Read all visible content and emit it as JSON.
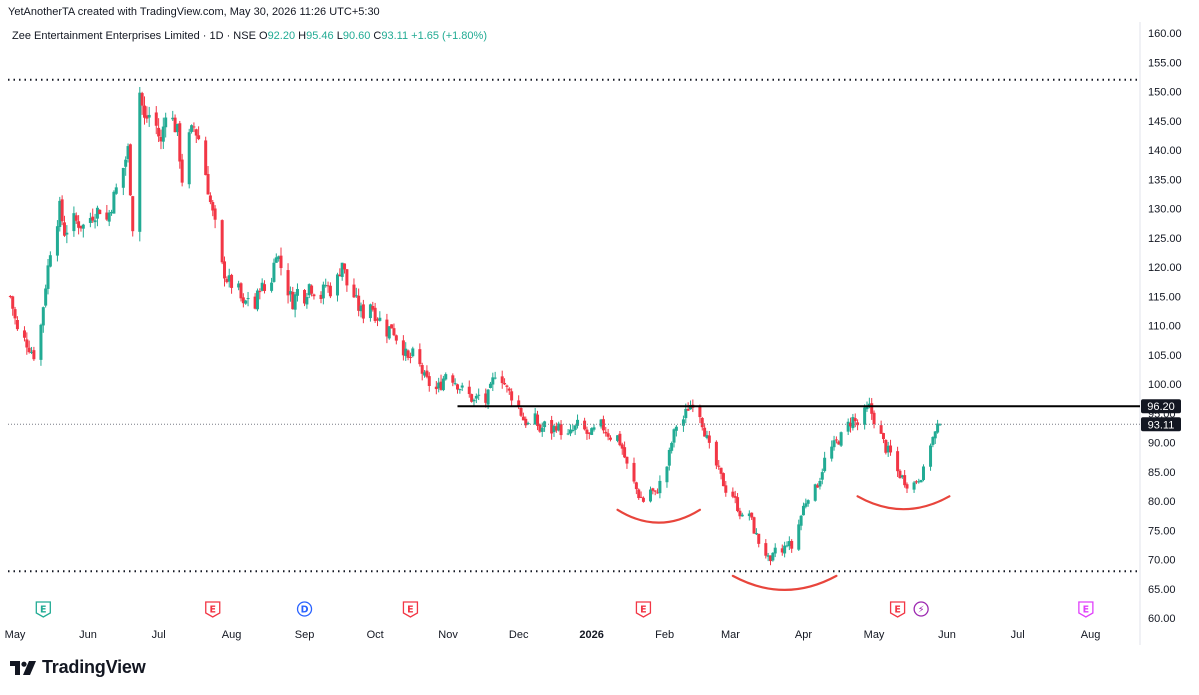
{
  "header": {
    "credit": "YetAnotherTA created with TradingView.com, May 30, 2026 11:26 UTC+5:30",
    "symbol": "Zee Entertainment Enterprises Limited · 1D · NSE",
    "ohlc": [
      {
        "label": "O",
        "value": "92.20"
      },
      {
        "label": "H",
        "value": "95.46"
      },
      {
        "label": "L",
        "value": "90.60"
      },
      {
        "label": "C",
        "value": "93.11"
      }
    ],
    "change": "+1.65 (+1.80%)"
  },
  "brand": {
    "name": "TradingView",
    "logo_icon": "tradingview-logo-icon"
  },
  "colors": {
    "up": "#22ab94",
    "down": "#f23645",
    "pattern": "#e8453c",
    "resistance": "#000000",
    "label_bg": "#131722"
  },
  "chart_data": {
    "type": "candlestick",
    "title": "",
    "xlabel": "",
    "ylabel": "",
    "ylim": [
      60,
      162
    ],
    "y_ticks": [
      "160.00",
      "155.00",
      "150.00",
      "145.00",
      "140.00",
      "135.00",
      "130.00",
      "125.00",
      "120.00",
      "115.00",
      "110.00",
      "105.00",
      "100.00",
      "95.00",
      "90.00",
      "85.00",
      "80.00",
      "75.00",
      "70.00",
      "65.00",
      "60.00"
    ],
    "x_ticks": [
      "May",
      "Jun",
      "Jul",
      "Aug",
      "Sep",
      "Oct",
      "Nov",
      "Dec",
      "2026",
      "Feb",
      "Mar",
      "Apr",
      "May",
      "Jun",
      "Jul",
      "Aug"
    ],
    "x_tick_dates": [
      "2025-05-01",
      "2025-06-01",
      "2025-07-01",
      "2025-08-01",
      "2025-09-01",
      "2025-10-01",
      "2025-11-01",
      "2025-12-01",
      "2026-01-01",
      "2026-02-01",
      "2026-03-01",
      "2026-04-01",
      "2026-05-01",
      "2026-06-01",
      "2026-07-01",
      "2026-08-01"
    ],
    "price_path": [
      [
        "2025-04-29",
        115
      ],
      [
        "2025-05-02",
        109
      ],
      [
        "2025-05-06",
        107
      ],
      [
        "2025-05-09",
        105
      ],
      [
        "2025-05-12",
        110
      ],
      [
        "2025-05-14",
        117
      ],
      [
        "2025-05-16",
        123
      ],
      [
        "2025-05-20",
        130
      ],
      [
        "2025-05-22",
        126
      ],
      [
        "2025-05-26",
        128
      ],
      [
        "2025-05-30",
        127
      ],
      [
        "2025-06-03",
        129
      ],
      [
        "2025-06-06",
        130
      ],
      [
        "2025-06-09",
        128
      ],
      [
        "2025-06-12",
        132
      ],
      [
        "2025-06-16",
        137
      ],
      [
        "2025-06-18",
        140
      ],
      [
        "2025-06-20",
        127
      ],
      [
        "2025-06-23",
        150
      ],
      [
        "2025-06-25",
        145
      ],
      [
        "2025-06-27",
        146
      ],
      [
        "2025-06-30",
        144
      ],
      [
        "2025-07-02",
        141
      ],
      [
        "2025-07-04",
        147
      ],
      [
        "2025-07-07",
        145
      ],
      [
        "2025-07-09",
        143
      ],
      [
        "2025-07-11",
        135
      ],
      [
        "2025-07-14",
        142
      ],
      [
        "2025-07-16",
        144
      ],
      [
        "2025-07-18",
        142
      ],
      [
        "2025-07-21",
        136
      ],
      [
        "2025-07-23",
        131
      ],
      [
        "2025-07-25",
        127
      ],
      [
        "2025-07-28",
        120
      ],
      [
        "2025-07-30",
        118
      ],
      [
        "2025-08-01",
        117
      ],
      [
        "2025-08-04",
        116
      ],
      [
        "2025-08-06",
        113
      ],
      [
        "2025-08-08",
        115
      ],
      [
        "2025-08-11",
        113
      ],
      [
        "2025-08-13",
        117
      ],
      [
        "2025-08-15",
        116
      ],
      [
        "2025-08-18",
        118
      ],
      [
        "2025-08-20",
        123
      ],
      [
        "2025-08-22",
        120
      ],
      [
        "2025-08-25",
        116
      ],
      [
        "2025-08-27",
        114
      ],
      [
        "2025-08-29",
        116
      ],
      [
        "2025-09-01",
        115
      ],
      [
        "2025-09-03",
        117
      ],
      [
        "2025-09-05",
        116
      ],
      [
        "2025-09-08",
        115
      ],
      [
        "2025-09-10",
        117
      ],
      [
        "2025-09-12",
        116
      ],
      [
        "2025-09-15",
        118
      ],
      [
        "2025-09-17",
        121
      ],
      [
        "2025-09-19",
        117
      ],
      [
        "2025-09-22",
        115
      ],
      [
        "2025-09-24",
        113
      ],
      [
        "2025-09-26",
        112
      ],
      [
        "2025-09-29",
        114
      ],
      [
        "2025-10-01",
        112
      ],
      [
        "2025-10-03",
        111
      ],
      [
        "2025-10-06",
        109
      ],
      [
        "2025-10-08",
        110
      ],
      [
        "2025-10-10",
        108
      ],
      [
        "2025-10-13",
        106
      ],
      [
        "2025-10-15",
        104
      ],
      [
        "2025-10-17",
        105
      ],
      [
        "2025-10-20",
        103
      ],
      [
        "2025-10-22",
        101
      ],
      [
        "2025-10-24",
        100
      ],
      [
        "2025-10-27",
        99
      ],
      [
        "2025-10-29",
        100
      ],
      [
        "2025-10-31",
        102
      ],
      [
        "2025-11-03",
        101
      ],
      [
        "2025-11-05",
        100
      ],
      [
        "2025-11-07",
        99
      ],
      [
        "2025-11-10",
        98
      ],
      [
        "2025-11-12",
        97
      ],
      [
        "2025-11-14",
        98
      ],
      [
        "2025-11-17",
        97
      ],
      [
        "2025-11-19",
        99
      ],
      [
        "2025-11-21",
        102
      ],
      [
        "2025-11-24",
        101
      ],
      [
        "2025-11-26",
        99
      ],
      [
        "2025-11-28",
        98
      ],
      [
        "2025-12-01",
        96
      ],
      [
        "2025-12-03",
        94
      ],
      [
        "2025-12-05",
        93
      ],
      [
        "2025-12-08",
        94
      ],
      [
        "2025-12-10",
        92
      ],
      [
        "2025-12-12",
        93
      ],
      [
        "2025-12-15",
        92
      ],
      [
        "2025-12-17",
        93
      ],
      [
        "2025-12-19",
        92
      ],
      [
        "2025-12-22",
        91
      ],
      [
        "2025-12-24",
        92
      ],
      [
        "2025-12-26",
        93
      ],
      [
        "2025-12-29",
        92
      ],
      [
        "2025-12-31",
        91
      ],
      [
        "2026-01-02",
        92
      ],
      [
        "2026-01-05",
        93
      ],
      [
        "2026-01-07",
        92
      ],
      [
        "2026-01-09",
        91
      ],
      [
        "2026-01-12",
        91
      ],
      [
        "2026-01-14",
        89
      ],
      [
        "2026-01-16",
        86
      ],
      [
        "2026-01-19",
        83
      ],
      [
        "2026-01-21",
        81
      ],
      [
        "2026-01-23",
        80
      ],
      [
        "2026-01-26",
        82
      ],
      [
        "2026-01-28",
        81
      ],
      [
        "2026-01-30",
        83
      ],
      [
        "2026-02-02",
        86
      ],
      [
        "2026-02-04",
        90
      ],
      [
        "2026-02-06",
        93
      ],
      [
        "2026-02-09",
        94
      ],
      [
        "2026-02-11",
        96
      ],
      [
        "2026-02-13",
        97
      ],
      [
        "2026-02-16",
        95
      ],
      [
        "2026-02-18",
        92
      ],
      [
        "2026-02-20",
        89
      ],
      [
        "2026-02-23",
        86
      ],
      [
        "2026-02-25",
        84
      ],
      [
        "2026-02-27",
        82
      ],
      [
        "2026-03-02",
        81
      ],
      [
        "2026-03-04",
        79
      ],
      [
        "2026-03-06",
        77
      ],
      [
        "2026-03-09",
        78
      ],
      [
        "2026-03-11",
        75
      ],
      [
        "2026-03-13",
        73
      ],
      [
        "2026-03-16",
        71
      ],
      [
        "2026-03-18",
        69
      ],
      [
        "2026-03-20",
        72
      ],
      [
        "2026-03-23",
        71
      ],
      [
        "2026-03-25",
        73
      ],
      [
        "2026-03-27",
        72
      ],
      [
        "2026-03-30",
        76
      ],
      [
        "2026-04-01",
        79
      ],
      [
        "2026-04-03",
        81
      ],
      [
        "2026-04-06",
        82
      ],
      [
        "2026-04-08",
        84
      ],
      [
        "2026-04-10",
        87
      ],
      [
        "2026-04-13",
        89
      ],
      [
        "2026-04-15",
        90
      ],
      [
        "2026-04-17",
        91
      ],
      [
        "2026-04-20",
        93
      ],
      [
        "2026-04-22",
        94
      ],
      [
        "2026-04-24",
        93
      ],
      [
        "2026-04-27",
        95
      ],
      [
        "2026-04-29",
        96
      ],
      [
        "2026-05-01",
        94
      ],
      [
        "2026-05-04",
        91
      ],
      [
        "2026-05-06",
        89
      ],
      [
        "2026-05-08",
        88
      ],
      [
        "2026-05-11",
        85
      ],
      [
        "2026-05-13",
        84
      ],
      [
        "2026-05-15",
        83
      ],
      [
        "2026-05-18",
        83
      ],
      [
        "2026-05-20",
        84
      ],
      [
        "2026-05-22",
        85
      ],
      [
        "2026-05-25",
        90
      ],
      [
        "2026-05-27",
        91.46
      ],
      [
        "2026-05-29",
        93.11
      ]
    ],
    "resistance_line": {
      "from": "2025-11-05",
      "to_axis": true,
      "value": 96.2,
      "label": "96.20"
    },
    "last_price": {
      "value": 93.11,
      "label": "93.11"
    },
    "dotted_levels": [
      152,
      68
    ],
    "pattern_arcs": [
      {
        "from": "2026-01-12",
        "to": "2026-02-16",
        "level": 78.5,
        "depth": 2.2
      },
      {
        "from": "2026-03-02",
        "to": "2026-04-15",
        "level": 67.2,
        "depth": 2.4
      },
      {
        "from": "2026-04-24",
        "to": "2026-06-02",
        "level": 80.8,
        "depth": 2.2
      }
    ],
    "event_markers": [
      {
        "date": "2025-05-13",
        "letter": "E",
        "color": "#22ab94"
      },
      {
        "date": "2025-07-24",
        "letter": "E",
        "color": "#f23645"
      },
      {
        "date": "2025-09-01",
        "letter": "D",
        "color": "#2962ff"
      },
      {
        "date": "2025-10-16",
        "letter": "E",
        "color": "#f23645"
      },
      {
        "date": "2026-01-23",
        "letter": "E",
        "color": "#f23645"
      },
      {
        "date": "2026-05-11",
        "letter": "E",
        "color": "#f23645"
      },
      {
        "date": "2026-05-21",
        "letter": "⚡",
        "color": "#9c27b0"
      },
      {
        "date": "2026-07-30",
        "letter": "E",
        "color": "#e040fb"
      }
    ]
  }
}
